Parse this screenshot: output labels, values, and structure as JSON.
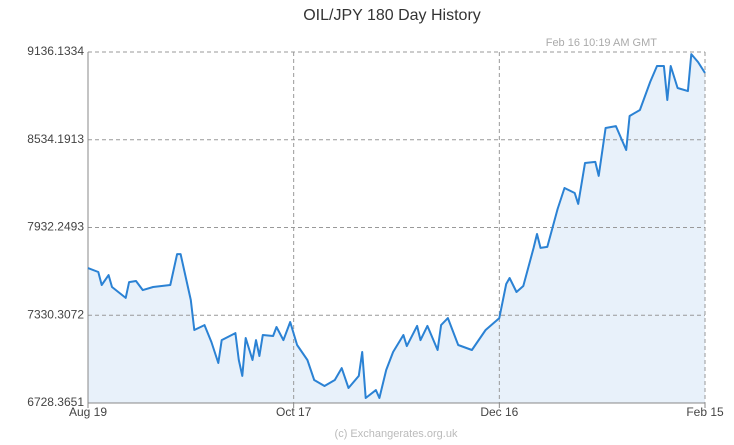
{
  "chart_data": {
    "type": "line",
    "title": "OIL/JPY  180 Day History",
    "annotation": "Feb 16  10:19 AM GMT",
    "source": "(c) Exchangerates.org.uk",
    "x": [
      0,
      3,
      4,
      6,
      7,
      11,
      12,
      14,
      16,
      19,
      24,
      26,
      27,
      30,
      31,
      34,
      36,
      38,
      39,
      43,
      44,
      45,
      46,
      48,
      49,
      50,
      51,
      54,
      55,
      57,
      59,
      61,
      64,
      66,
      69,
      72,
      74,
      76,
      79,
      80,
      81,
      84,
      85,
      87,
      89,
      92,
      93,
      96,
      97,
      99,
      102,
      103,
      105,
      108,
      112,
      116,
      120,
      122,
      123,
      125,
      127,
      130,
      131,
      132,
      134,
      137,
      139,
      142,
      143,
      145,
      148,
      149,
      151,
      154,
      157,
      158,
      161,
      164,
      166,
      168,
      169,
      170,
      172,
      175,
      176,
      178,
      180
    ],
    "series": [
      {
        "name": "OIL/JPY",
        "color": "#2b82d4",
        "values": [
          7654,
          7627,
          7538,
          7606,
          7524,
          7449,
          7558,
          7565,
          7503,
          7524,
          7538,
          7750,
          7750,
          7435,
          7229,
          7263,
          7147,
          7003,
          7160,
          7208,
          7023,
          6914,
          7174,
          7023,
          7160,
          7051,
          7195,
          7188,
          7250,
          7160,
          7284,
          7126,
          7023,
          6886,
          6845,
          6886,
          6968,
          6831,
          6914,
          7078,
          6763,
          6817,
          6763,
          6955,
          7078,
          7195,
          7119,
          7257,
          7160,
          7257,
          7092,
          7263,
          7311,
          7126,
          7092,
          7229,
          7311,
          7545,
          7586,
          7490,
          7531,
          7792,
          7888,
          7792,
          7799,
          8059,
          8203,
          8169,
          8094,
          8375,
          8382,
          8286,
          8615,
          8628,
          8464,
          8697,
          8738,
          8931,
          9040,
          9040,
          8807,
          9040,
          8889,
          8868,
          9122,
          9067,
          8992
        ]
      }
    ],
    "xlim": [
      0,
      180
    ],
    "xticks": [
      {
        "value": 0,
        "label": "Aug 19"
      },
      {
        "value": 60,
        "label": "Oct 17"
      },
      {
        "value": 120,
        "label": "Dec 16"
      },
      {
        "value": 180,
        "label": "Feb 15"
      }
    ],
    "ylim": [
      6728.3651,
      9136.1334
    ],
    "yticks": [
      6728.3651,
      7330.3072,
      7932.2493,
      8534.1913,
      9136.1334
    ],
    "grid": true
  }
}
